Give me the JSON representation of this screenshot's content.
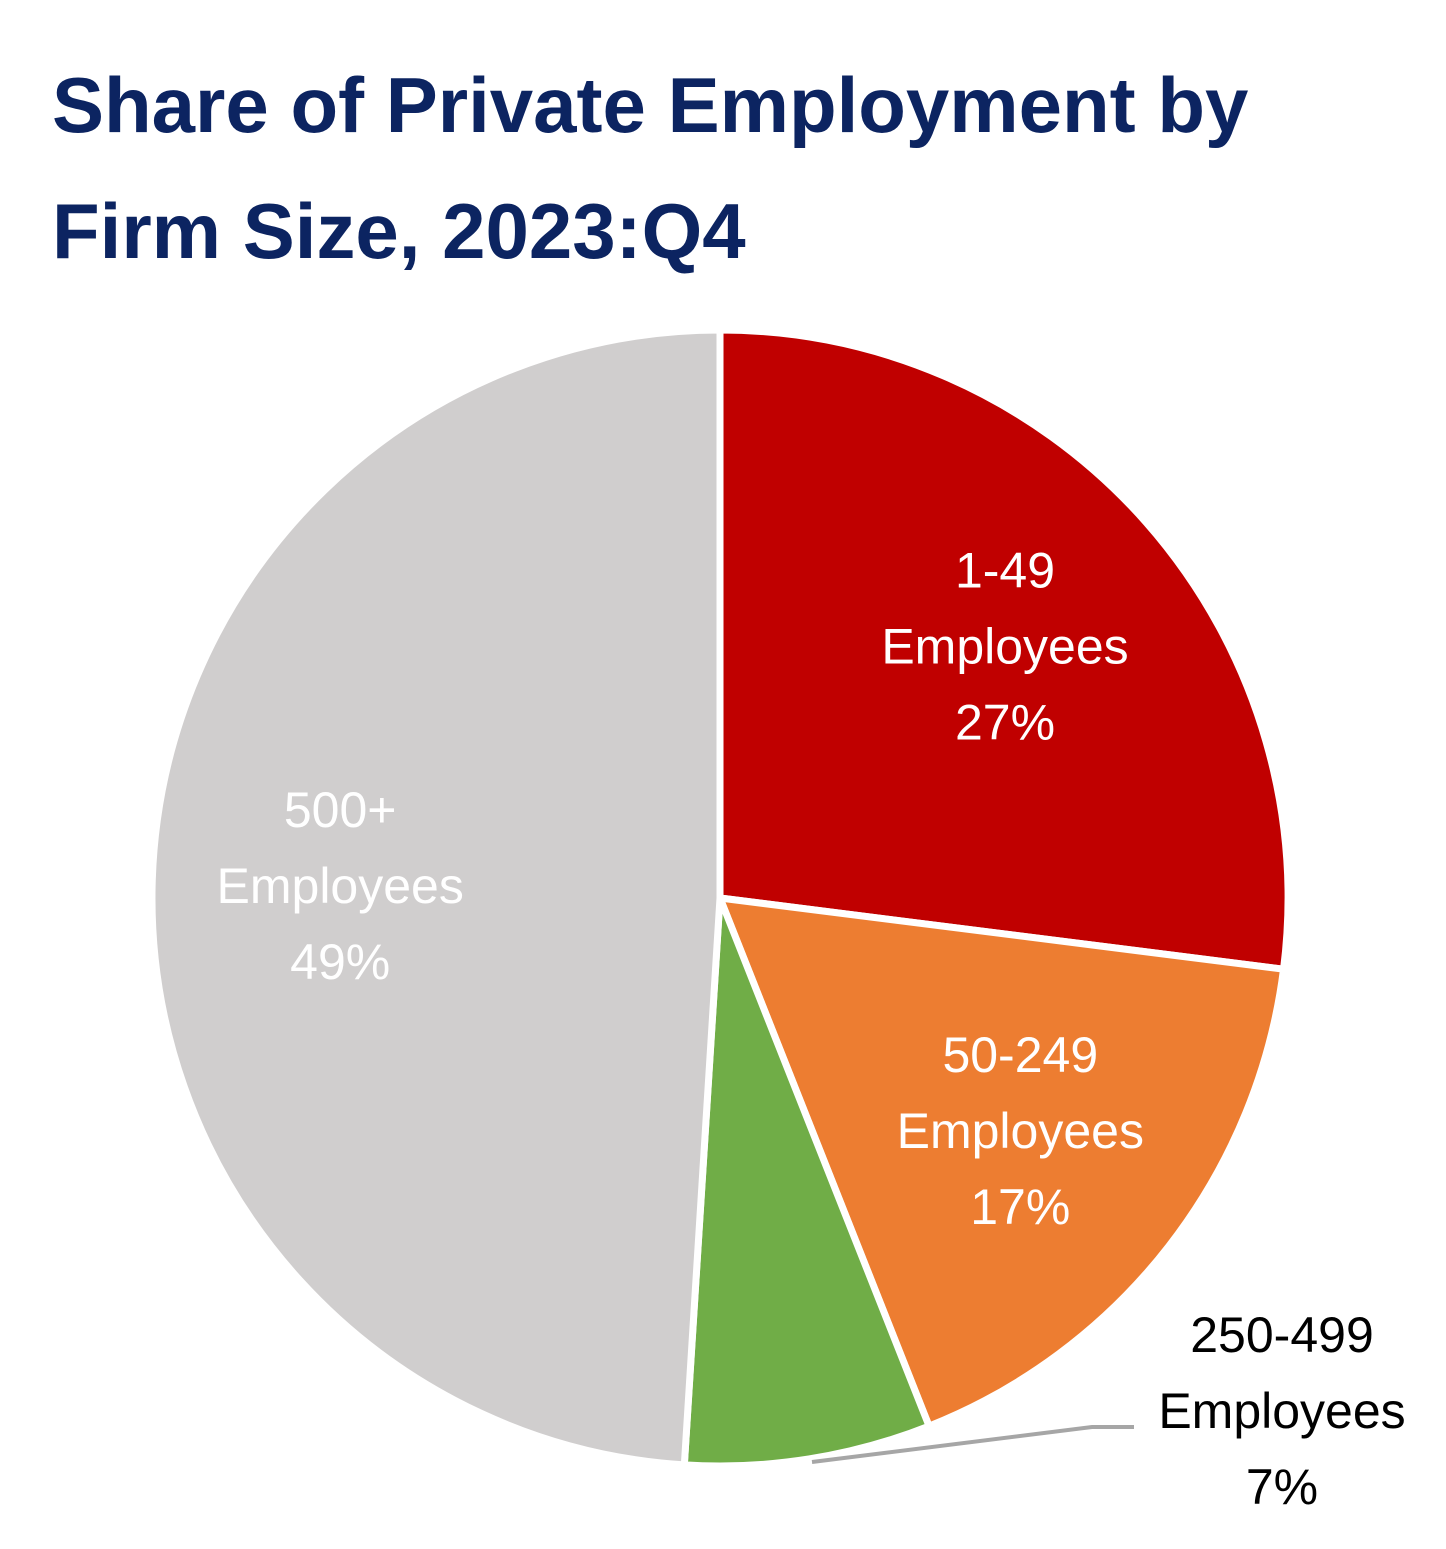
{
  "chart_data": {
    "type": "pie",
    "title": "Share of Private Employment by Firm Size, 2023:Q4",
    "start_angle_deg": 0,
    "direction": "clockwise",
    "slices": [
      {
        "range": "1-49",
        "unit": "Employees",
        "value": 27,
        "value_label": "27%",
        "color": "#c00000",
        "label_color": "#ffffff",
        "label_position": "inside"
      },
      {
        "range": "50-249",
        "unit": "Employees",
        "value": 17,
        "value_label": "17%",
        "color": "#ed7d31",
        "label_color": "#ffffff",
        "label_position": "inside"
      },
      {
        "range": "250-499",
        "unit": "Employees",
        "value": 7,
        "value_label": "7%",
        "color": "#70ad47",
        "label_color": "#000000",
        "label_position": "outside-leader"
      },
      {
        "range": "500+",
        "unit": "Employees",
        "value": 49,
        "value_label": "49%",
        "color": "#d0cece",
        "label_color": "#ffffff",
        "label_position": "inside"
      }
    ],
    "separator_color": "#ffffff",
    "leader_line_color": "#a6a6a6"
  }
}
